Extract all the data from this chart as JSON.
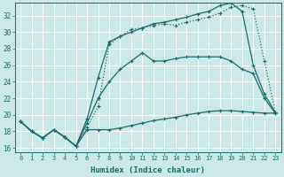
{
  "xlabel": "Humidex (Indice chaleur)",
  "xlim": [
    -0.5,
    23.5
  ],
  "ylim": [
    15.5,
    33.5
  ],
  "xticks": [
    0,
    1,
    2,
    3,
    4,
    5,
    6,
    7,
    8,
    9,
    10,
    11,
    12,
    13,
    14,
    15,
    16,
    17,
    18,
    19,
    20,
    21,
    22,
    23
  ],
  "yticks": [
    16,
    18,
    20,
    22,
    24,
    26,
    28,
    30,
    32
  ],
  "bg_color": "#cce8e8",
  "grid_color": "#ffffff",
  "line_color": "#1a6b6b",
  "curves": [
    {
      "x": [
        0,
        1,
        2,
        3,
        4,
        5,
        6,
        7,
        8,
        9,
        10,
        11,
        12,
        13,
        14,
        15,
        16,
        17,
        18,
        19,
        20,
        21,
        22,
        23
      ],
      "y": [
        19.2,
        18.0,
        17.2,
        18.2,
        17.3,
        16.2,
        18.2,
        18.2,
        18.2,
        18.4,
        18.7,
        19.0,
        19.3,
        19.5,
        19.7,
        20.0,
        20.2,
        20.4,
        20.5,
        20.5,
        20.4,
        20.3,
        20.2,
        20.2
      ],
      "style": "-",
      "lw": 0.9
    },
    {
      "x": [
        0,
        1,
        2,
        3,
        4,
        5,
        6,
        7,
        8,
        9,
        10,
        11,
        12,
        13,
        14,
        15,
        16,
        17,
        18,
        19,
        20,
        21,
        22,
        23
      ],
      "y": [
        19.2,
        18.0,
        17.2,
        18.2,
        17.3,
        16.2,
        19.0,
        22.0,
        24.0,
        25.5,
        26.5,
        27.5,
        26.5,
        26.5,
        26.8,
        27.0,
        27.0,
        27.0,
        27.0,
        26.5,
        25.5,
        25.0,
        22.0,
        20.2
      ],
      "style": "-",
      "lw": 0.9
    },
    {
      "x": [
        0,
        1,
        2,
        3,
        4,
        5,
        6,
        7,
        8,
        9,
        10,
        11,
        12,
        13,
        14,
        15,
        16,
        17,
        18,
        19,
        20,
        21,
        22,
        23
      ],
      "y": [
        19.2,
        18.0,
        17.2,
        18.2,
        17.3,
        16.2,
        18.5,
        21.0,
        28.5,
        29.5,
        30.3,
        30.5,
        30.8,
        31.0,
        30.8,
        31.2,
        31.5,
        31.8,
        32.3,
        33.0,
        33.2,
        32.8,
        26.5,
        20.3
      ],
      "style": ":",
      "lw": 0.9
    },
    {
      "x": [
        0,
        1,
        2,
        3,
        4,
        5,
        6,
        7,
        8,
        9,
        10,
        11,
        12,
        13,
        14,
        15,
        16,
        17,
        18,
        19,
        20,
        21,
        22,
        23
      ],
      "y": [
        19.2,
        18.0,
        17.2,
        18.2,
        17.3,
        16.2,
        19.5,
        24.5,
        28.8,
        29.5,
        30.0,
        30.5,
        31.0,
        31.2,
        31.5,
        31.8,
        32.2,
        32.5,
        33.2,
        33.5,
        32.5,
        26.0,
        22.5,
        20.3
      ],
      "style": "-",
      "lw": 0.9
    }
  ]
}
